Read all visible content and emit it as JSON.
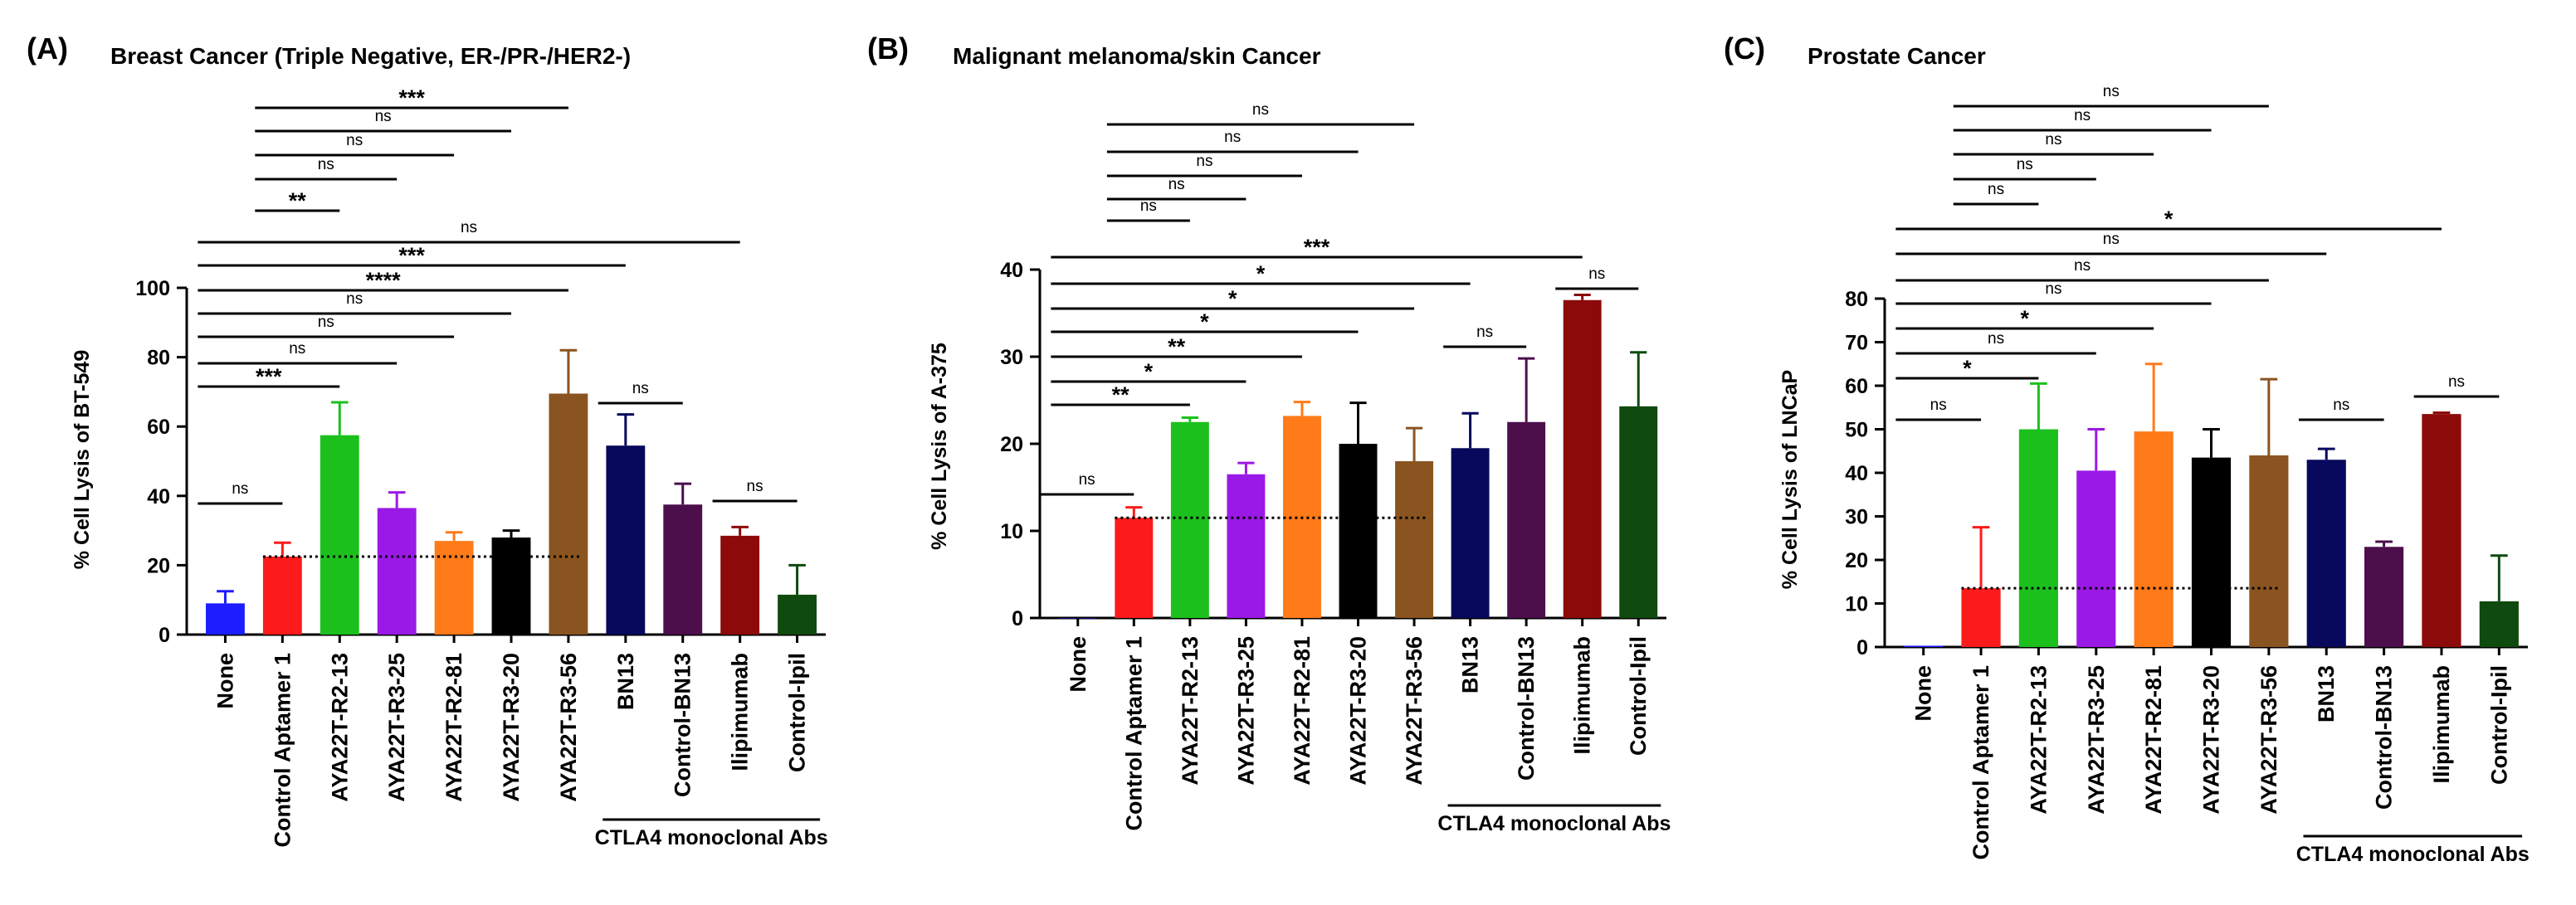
{
  "colors": {
    "None": "#1d1dff",
    "Control Aptamer 1": "#fb1b1b",
    "AYA22T-R2-13": "#1cc01c",
    "AYA22T-R3-25": "#9b19e6",
    "AYA22T-R2-81": "#ff7a18",
    "AYA22T-R3-20": "#000000",
    "AYA22T-R3-56": "#8a5420",
    "BN13": "#08085c",
    "Control-BN13": "#4c0f4c",
    "Ilipimumab": "#8c0a0a",
    "Control-Ipil": "#0f4a0f"
  },
  "chart_data": [
    {
      "type": "bar",
      "panel_label": "(A)",
      "title": "Breast Cancer (Triple Negative, ER-/PR-/HER2-)",
      "ylabel": "% Cell Lysis of BT-549",
      "ylim": [
        0,
        100
      ],
      "yticks": [
        0,
        20,
        40,
        60,
        80,
        100
      ],
      "categories": [
        "None",
        "Control Aptamer 1",
        "AYA22T-R2-13",
        "AYA22T-R3-25",
        "AYA22T-R2-81",
        "AYA22T-R3-20",
        "AYA22T-R3-56",
        "BN13",
        "Control-BN13",
        "Ilipimumab",
        "Control-Ipil"
      ],
      "values": [
        9,
        22.5,
        57.5,
        36.5,
        27,
        28,
        69.5,
        54.5,
        37.5,
        28.5,
        11.5
      ],
      "errors": [
        3.5,
        4,
        9.5,
        4.5,
        2.5,
        2,
        12.5,
        9,
        6,
        2.5,
        8.5
      ],
      "reference_line": 22.5,
      "group_label": "CTLA4 monoclonal Abs",
      "group_range": [
        7,
        10
      ],
      "comparisons": [
        {
          "from": 1,
          "to": 6,
          "label": "***"
        },
        {
          "from": 1,
          "to": 5,
          "label": "ns"
        },
        {
          "from": 1,
          "to": 4,
          "label": "ns"
        },
        {
          "from": 1,
          "to": 3,
          "label": "ns"
        },
        {
          "from": 1,
          "to": 2,
          "label": "**"
        },
        {
          "from": 0,
          "to": 9,
          "label": "ns"
        },
        {
          "from": 0,
          "to": 7,
          "label": "***"
        },
        {
          "from": 0,
          "to": 6,
          "label": "****"
        },
        {
          "from": 0,
          "to": 5,
          "label": "ns"
        },
        {
          "from": 0,
          "to": 4,
          "label": "ns"
        },
        {
          "from": 0,
          "to": 3,
          "label": "ns"
        },
        {
          "from": 0,
          "to": 2,
          "label": "***"
        },
        {
          "from": 7,
          "to": 8,
          "label": "ns"
        },
        {
          "from": 9,
          "to": 10,
          "label": "ns"
        },
        {
          "from": 0,
          "to": 1,
          "label": "ns"
        }
      ]
    },
    {
      "type": "bar",
      "panel_label": "(B)",
      "title": "Malignant melanoma/skin Cancer",
      "ylabel": "% Cell Lysis of A-375",
      "ylim": [
        0,
        40
      ],
      "yticks": [
        0,
        10,
        20,
        30,
        40
      ],
      "categories": [
        "None",
        "Control Aptamer 1",
        "AYA22T-R2-13",
        "AYA22T-R3-25",
        "AYA22T-R2-81",
        "AYA22T-R3-20",
        "AYA22T-R3-56",
        "BN13",
        "Control-BN13",
        "Ilipimumab",
        "Control-Ipil"
      ],
      "values": [
        0,
        11.5,
        22.5,
        16.5,
        23.2,
        20,
        18,
        19.5,
        22.5,
        36.5,
        24.3
      ],
      "errors": [
        0,
        1.2,
        0.5,
        1.3,
        1.6,
        4.7,
        3.8,
        4,
        7.3,
        0.6,
        6.2
      ],
      "reference_line": 11.5,
      "group_label": "CTLA4 monoclonal Abs",
      "group_range": [
        7,
        10
      ],
      "comparisons": [
        {
          "from": 1,
          "to": 6,
          "label": "ns"
        },
        {
          "from": 1,
          "to": 5,
          "label": "ns"
        },
        {
          "from": 1,
          "to": 4,
          "label": "ns"
        },
        {
          "from": 1,
          "to": 3,
          "label": "ns"
        },
        {
          "from": 1,
          "to": 2,
          "label": "ns"
        },
        {
          "from": 0,
          "to": 9,
          "label": "***"
        },
        {
          "from": 0,
          "to": 7,
          "label": "*"
        },
        {
          "from": 0,
          "to": 6,
          "label": "*"
        },
        {
          "from": 0,
          "to": 5,
          "label": "*"
        },
        {
          "from": 0,
          "to": 4,
          "label": "**"
        },
        {
          "from": 0,
          "to": 3,
          "label": "*"
        },
        {
          "from": 0,
          "to": 2,
          "label": "**"
        },
        {
          "from": 9,
          "to": 10,
          "label": "ns"
        },
        {
          "from": 7,
          "to": 8,
          "label": "ns"
        },
        {
          "from": -0.1,
          "to": 1,
          "label": "ns"
        }
      ]
    },
    {
      "type": "bar",
      "panel_label": "(C)",
      "title": "Prostate Cancer",
      "ylabel": "% Cell Lysis of LNCaP",
      "ylim": [
        0,
        80
      ],
      "yticks": [
        0,
        10,
        20,
        30,
        40,
        50,
        60,
        70,
        80
      ],
      "categories": [
        "None",
        "Control Aptamer 1",
        "AYA22T-R2-13",
        "AYA22T-R3-25",
        "AYA22T-R2-81",
        "AYA22T-R3-20",
        "AYA22T-R3-56",
        "BN13",
        "Control-BN13",
        "Ilipimumab",
        "Control-Ipil"
      ],
      "values": [
        0.3,
        13.5,
        50,
        40.5,
        49.5,
        43.5,
        44,
        43,
        23,
        53.5,
        10.5
      ],
      "errors": [
        0,
        14,
        10.5,
        9.5,
        15.5,
        6.5,
        17.5,
        2.5,
        1.2,
        0.3,
        10.5
      ],
      "reference_line": 13.5,
      "group_label": "CTLA4 monoclonal Abs",
      "group_range": [
        7,
        10
      ],
      "comparisons": [
        {
          "from": 1,
          "to": 6,
          "label": "ns"
        },
        {
          "from": 1,
          "to": 5,
          "label": "ns"
        },
        {
          "from": 1,
          "to": 4,
          "label": "ns"
        },
        {
          "from": 1,
          "to": 3,
          "label": "ns"
        },
        {
          "from": 1,
          "to": 2,
          "label": "ns"
        },
        {
          "from": 0,
          "to": 9,
          "label": "*"
        },
        {
          "from": 0,
          "to": 7,
          "label": "ns"
        },
        {
          "from": 0,
          "to": 6,
          "label": "ns"
        },
        {
          "from": 0,
          "to": 5,
          "label": "ns"
        },
        {
          "from": 0,
          "to": 4,
          "label": "*"
        },
        {
          "from": 0,
          "to": 3,
          "label": "ns"
        },
        {
          "from": 0,
          "to": 2,
          "label": "*"
        },
        {
          "from": 0,
          "to": 1,
          "label": "ns"
        },
        {
          "from": 7,
          "to": 8,
          "label": "ns"
        },
        {
          "from": 9,
          "to": 10,
          "label": "ns"
        }
      ]
    }
  ]
}
